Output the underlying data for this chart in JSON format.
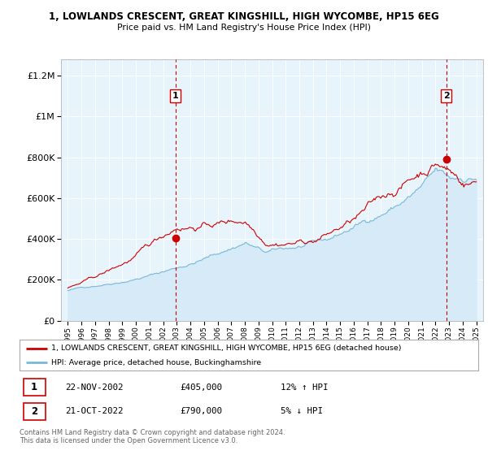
{
  "title_line1": "1, LOWLANDS CRESCENT, GREAT KINGSHILL, HIGH WYCOMBE, HP15 6EG",
  "title_line2": "Price paid vs. HM Land Registry's House Price Index (HPI)",
  "ytick_vals": [
    0,
    200000,
    400000,
    600000,
    800000,
    1000000,
    1200000
  ],
  "ylim": [
    0,
    1280000
  ],
  "sale1_year": 2002.9,
  "sale1_price": 405000,
  "sale2_year": 2022.8,
  "sale2_price": 790000,
  "hpi_color": "#7ab8d9",
  "hpi_fill_color": "#d6eaf8",
  "price_color": "#cc0000",
  "vline_color": "#cc0000",
  "legend_label_price": "1, LOWLANDS CRESCENT, GREAT KINGSHILL, HIGH WYCOMBE, HP15 6EG (detached house)",
  "legend_label_hpi": "HPI: Average price, detached house, Buckinghamshire",
  "table_row1": [
    "1",
    "22-NOV-2002",
    "£405,000",
    "12% ↑ HPI"
  ],
  "table_row2": [
    "2",
    "21-OCT-2022",
    "£790,000",
    "5% ↓ HPI"
  ],
  "footer": "Contains HM Land Registry data © Crown copyright and database right 2024.\nThis data is licensed under the Open Government Licence v3.0.",
  "background_color": "#ffffff",
  "plot_bg_color": "#e8f4fc",
  "grid_color": "#ffffff"
}
